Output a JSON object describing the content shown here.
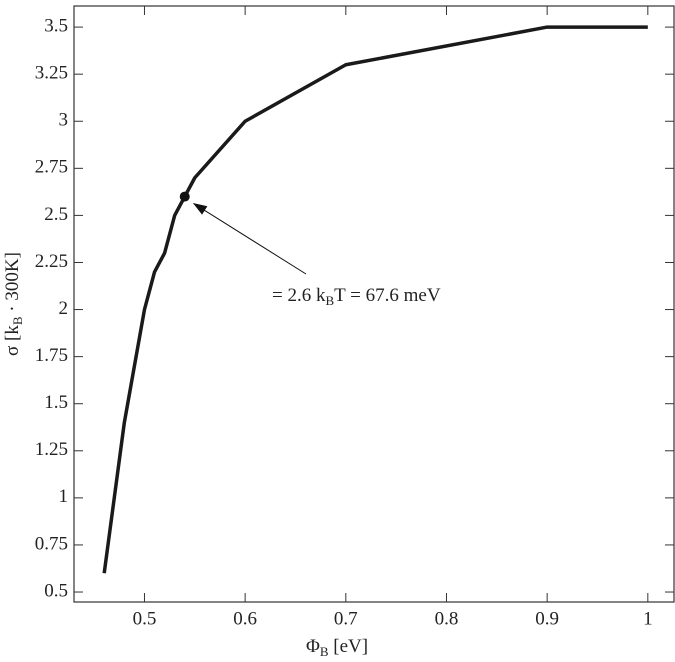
{
  "chart_data": {
    "type": "line",
    "xlabel": {
      "symbol": "Φ",
      "subscript": "B",
      "unit": " [eV]"
    },
    "ylabel": {
      "symbol": "σ [k",
      "subscript": "B",
      "unit": " · 300K]"
    },
    "series": [
      {
        "color": "#1a1a1a",
        "x": [
          0.46,
          0.48,
          0.5,
          0.51,
          0.52,
          0.53,
          0.54,
          0.55,
          0.6,
          0.7,
          0.9,
          1.0
        ],
        "values": [
          0.6,
          1.4,
          2.0,
          2.2,
          2.3,
          2.5,
          2.6,
          2.7,
          3.0,
          3.3,
          3.5,
          3.5
        ]
      }
    ],
    "annotation": {
      "x": 0.54,
      "y": 2.6,
      "before": "= 2.6 k",
      "subscript": "B",
      "after": "T = 67.6 meV"
    },
    "xlim": [
      0.43,
      1.026
    ],
    "ylim": [
      0.447,
      3.612
    ],
    "xticks": [
      0.5,
      0.6,
      0.7,
      0.8,
      0.9,
      1
    ],
    "yticks": [
      0.5,
      0.75,
      1,
      1.25,
      1.5,
      1.75,
      2,
      2.25,
      2.5,
      2.75,
      3,
      3.25,
      3.5
    ]
  }
}
